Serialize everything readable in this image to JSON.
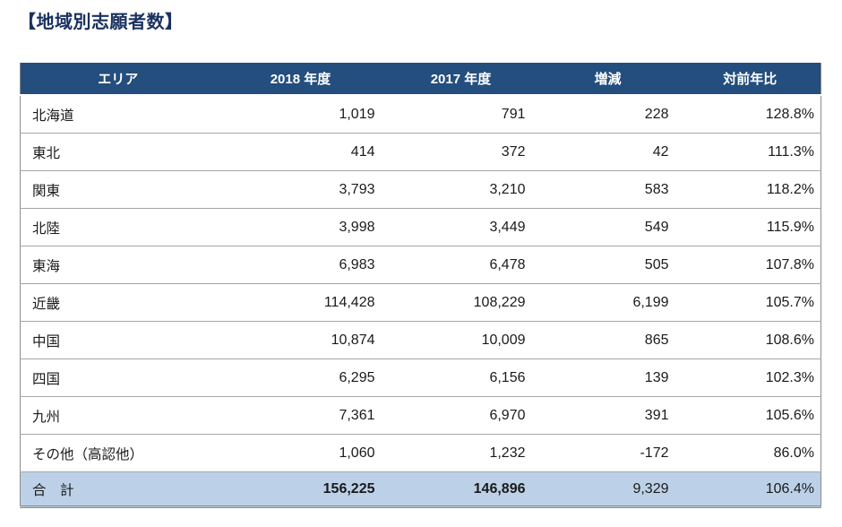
{
  "page": {
    "title": "【地域別志願者数】"
  },
  "table": {
    "columns": {
      "area": "エリア",
      "fy2018": "2018 年度",
      "fy2017": "2017 年度",
      "diff": "増減",
      "yoy": "対前年比"
    },
    "rows": [
      {
        "area": "北海道",
        "fy2018": "1,019",
        "fy2017": "791",
        "diff": "228",
        "yoy": "128.8%"
      },
      {
        "area": "東北",
        "fy2018": "414",
        "fy2017": "372",
        "diff": "42",
        "yoy": "111.3%"
      },
      {
        "area": "関東",
        "fy2018": "3,793",
        "fy2017": "3,210",
        "diff": "583",
        "yoy": "118.2%"
      },
      {
        "area": "北陸",
        "fy2018": "3,998",
        "fy2017": "3,449",
        "diff": "549",
        "yoy": "115.9%"
      },
      {
        "area": "東海",
        "fy2018": "6,983",
        "fy2017": "6,478",
        "diff": "505",
        "yoy": "107.8%"
      },
      {
        "area": "近畿",
        "fy2018": "114,428",
        "fy2017": "108,229",
        "diff": "6,199",
        "yoy": "105.7%"
      },
      {
        "area": "中国",
        "fy2018": "10,874",
        "fy2017": "10,009",
        "diff": "865",
        "yoy": "108.6%"
      },
      {
        "area": "四国",
        "fy2018": "6,295",
        "fy2017": "6,156",
        "diff": "139",
        "yoy": "102.3%"
      },
      {
        "area": "九州",
        "fy2018": "7,361",
        "fy2017": "6,970",
        "diff": "391",
        "yoy": "105.6%"
      },
      {
        "area": "その他（高認他）",
        "fy2018": "1,060",
        "fy2017": "1,232",
        "diff": "-172",
        "yoy": "86.0%"
      }
    ],
    "total": {
      "area": "合　計",
      "fy2018": "156,225",
      "fy2017": "146,896",
      "diff": "9,329",
      "yoy": "106.4%"
    }
  },
  "colors": {
    "header_bg": "#234e7d",
    "header_text": "#ffffff",
    "total_row_bg": "#bcd1e8",
    "title_text": "#1a3160",
    "row_border": "#a6a6a6"
  }
}
